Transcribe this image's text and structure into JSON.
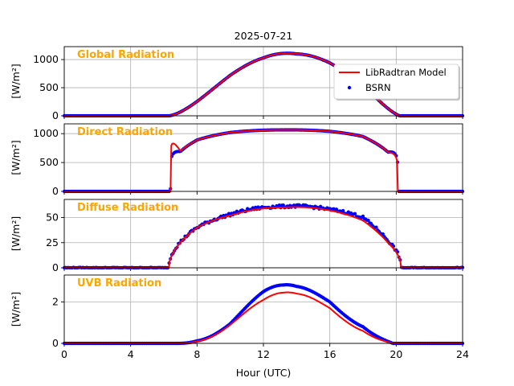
{
  "figure_title": "2025-07-21",
  "colors": {
    "model": "#ff0000",
    "bsrn": "#0000ff",
    "panel_label": "#ffa500",
    "grid": "#b0b0b0"
  },
  "legend": {
    "placement": "upper-right-of-first-panel",
    "model_label": "LibRadtran Model",
    "bsrn_label": "BSRN"
  },
  "xaxis": {
    "label": "Hour (UTC)",
    "ticks": [
      "0",
      "4",
      "8",
      "12",
      "16",
      "20",
      "24"
    ],
    "range": [
      0,
      24
    ]
  },
  "chart_data": [
    {
      "type": "line",
      "title": "Global Radiation",
      "ylabel": "[W/m²]",
      "ylim": [
        0,
        1230
      ],
      "yticks": [
        0,
        500,
        1000
      ],
      "grid": true,
      "shape": {
        "sunrise": 6.3,
        "sunset": 20.2,
        "peak": 1110,
        "exponent": 1.5,
        "noise": 0
      },
      "series": [
        {
          "name": "LibRadtran Model",
          "style": "line",
          "x": [
            6.3,
            8,
            10,
            12,
            13.2,
            14,
            16,
            18,
            20.2
          ],
          "y": [
            0,
            255,
            720,
            1030,
            1110,
            1100,
            940,
            560,
            0
          ]
        },
        {
          "name": "BSRN",
          "style": "markers",
          "x": [
            6.3,
            8,
            10,
            12,
            13.2,
            14,
            16,
            18,
            20.2
          ],
          "y": [
            0,
            255,
            720,
            1030,
            1110,
            1100,
            940,
            560,
            0
          ]
        }
      ]
    },
    {
      "type": "line",
      "title": "Direct Radiation",
      "ylabel": "[W/m²]",
      "ylim": [
        0,
        1170
      ],
      "yticks": [
        0,
        500,
        1000
      ],
      "grid": true,
      "shape": {
        "sunrise": 6.4,
        "sunset": 20.1,
        "peak": 1065,
        "exponent": 0.15,
        "noise": 0
      },
      "series": [
        {
          "name": "LibRadtran Model",
          "style": "line",
          "x": [
            6.4,
            7,
            8,
            10,
            12,
            13.2,
            16,
            18,
            19.5,
            20.1
          ],
          "y": [
            280,
            700,
            890,
            1020,
            1060,
            1065,
            1040,
            950,
            680,
            0
          ]
        },
        {
          "name": "BSRN",
          "style": "markers",
          "x": [
            6.4,
            7,
            8,
            10,
            12,
            13.2,
            16,
            18,
            19.5,
            20.1
          ],
          "y": [
            40,
            690,
            890,
            1020,
            1060,
            1065,
            1040,
            950,
            680,
            40
          ]
        }
      ]
    },
    {
      "type": "line",
      "title": "Diffuse Radiation",
      "ylabel": "[W/m²]",
      "ylim": [
        0,
        68
      ],
      "yticks": [
        0,
        25,
        50
      ],
      "grid": true,
      "shape": {
        "sunrise": 6.3,
        "sunset": 20.3,
        "peak": 60,
        "exponent": 0.5,
        "noise": 1.4
      },
      "series": [
        {
          "name": "LibRadtran Model",
          "style": "line",
          "x": [
            6.3,
            8,
            10,
            12,
            13.2,
            16,
            18,
            19.5,
            20.3
          ],
          "y": [
            0,
            40,
            52,
            59,
            60,
            57,
            47,
            25,
            0
          ]
        },
        {
          "name": "BSRN",
          "style": "markers",
          "x": [
            6.3,
            8,
            10,
            12,
            13.2,
            16,
            18,
            19.5,
            20.3
          ],
          "y": [
            1,
            40,
            53,
            60,
            61,
            58,
            50,
            27,
            1
          ]
        }
      ]
    },
    {
      "type": "line",
      "title": "UVB Radiation",
      "ylabel": "[W/m²]",
      "ylim": [
        0,
        3.3
      ],
      "yticks": [
        0,
        2
      ],
      "grid": true,
      "shape": {
        "sunrise": 6.6,
        "sunset": 19.8,
        "peak": 2.8,
        "exponent": 2.8,
        "noise": 0
      },
      "series": [
        {
          "name": "LibRadtran Model",
          "style": "line",
          "x": [
            6.6,
            8,
            10,
            12,
            13.2,
            14,
            16,
            18,
            19.8
          ],
          "y": [
            0,
            0.1,
            0.9,
            2.1,
            2.45,
            2.4,
            1.7,
            0.6,
            0
          ]
        },
        {
          "name": "BSRN",
          "style": "markers",
          "x": [
            6.6,
            8,
            10,
            12,
            13.2,
            14,
            16,
            18,
            19.8
          ],
          "y": [
            0,
            0.12,
            0.95,
            2.5,
            2.82,
            2.75,
            2.0,
            0.8,
            0
          ]
        }
      ]
    }
  ]
}
